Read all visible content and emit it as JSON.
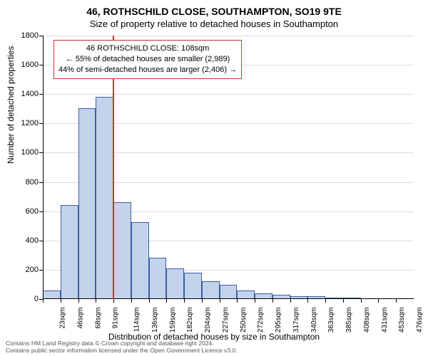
{
  "title_line1": "46, ROTHSCHILD CLOSE, SOUTHAMPTON, SO19 9TE",
  "title_line2": "Size of property relative to detached houses in Southampton",
  "ylabel": "Number of detached properties",
  "xlabel": "Distribution of detached houses by size in Southampton",
  "footer_line1": "Contains HM Land Registry data © Crown copyright and database right 2024.",
  "footer_line2": "Contains public sector information licensed under the Open Government Licence v3.0.",
  "chart": {
    "type": "histogram",
    "ylim": [
      0,
      1800
    ],
    "ytick_step": 200,
    "background_color": "#ffffff",
    "grid_color": "#dddddd",
    "bar_fill": "#c3d3ec",
    "bar_border": "#3c5ea0",
    "marker_color": "#d03030",
    "marker_x_category": "114sqm",
    "categories": [
      "23sqm",
      "46sqm",
      "68sqm",
      "91sqm",
      "114sqm",
      "136sqm",
      "159sqm",
      "182sqm",
      "204sqm",
      "227sqm",
      "250sqm",
      "272sqm",
      "295sqm",
      "317sqm",
      "340sqm",
      "363sqm",
      "385sqm",
      "408sqm",
      "431sqm",
      "453sqm",
      "476sqm"
    ],
    "values": [
      60,
      640,
      1305,
      1380,
      660,
      525,
      280,
      210,
      180,
      120,
      95,
      60,
      40,
      28,
      20,
      20,
      10,
      10,
      0,
      0,
      0
    ]
  },
  "annotation": {
    "line1": "46 ROTHSCHILD CLOSE: 108sqm",
    "line2": "← 55% of detached houses are smaller (2,989)",
    "line3": "44% of semi-detached houses are larger (2,406) →"
  }
}
